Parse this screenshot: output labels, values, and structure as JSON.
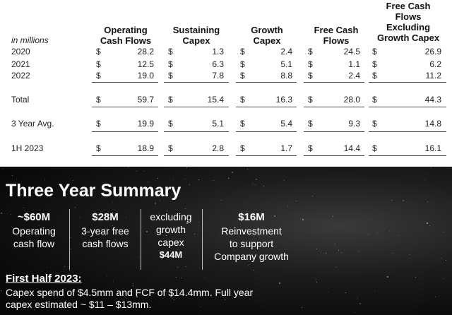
{
  "table": {
    "units_label": "in millions",
    "columns": [
      {
        "lines": [
          "Operating",
          "Cash Flows"
        ]
      },
      {
        "lines": [
          "Sustaining",
          "Capex"
        ]
      },
      {
        "lines": [
          "Growth",
          "Capex"
        ]
      },
      {
        "lines": [
          "Free Cash",
          "Flows"
        ]
      },
      {
        "lines": [
          "Free Cash",
          "Flows",
          "Excluding",
          "Growth Capex"
        ]
      }
    ],
    "currency_symbol": "$",
    "rows": [
      {
        "label": "2020",
        "values": [
          "28.2",
          "1.3",
          "2.4",
          "24.5",
          "26.9"
        ]
      },
      {
        "label": "2021",
        "values": [
          "12.5",
          "6.3",
          "5.1",
          "1.1",
          "6.2"
        ]
      },
      {
        "label": "2022",
        "values": [
          "19.0",
          "7.8",
          "8.8",
          "2.4",
          "11.2"
        ]
      },
      {
        "label": "Total",
        "values": [
          "59.7",
          "15.4",
          "16.3",
          "28.0",
          "44.3"
        ]
      },
      {
        "label": "3 Year Avg.",
        "values": [
          "19.9",
          "5.1",
          "5.4",
          "9.3",
          "14.8"
        ]
      },
      {
        "label": "1H 2023",
        "values": [
          "18.9",
          "2.8",
          "1.7",
          "14.4",
          "16.1"
        ]
      }
    ]
  },
  "summary": {
    "title": "Three Year Summary",
    "stats": [
      {
        "headline": "~$60M",
        "lines": [
          "Operating",
          "cash flow"
        ]
      },
      {
        "headline": "$28M",
        "lines": [
          "3-year free",
          "cash flows"
        ]
      },
      {
        "headline": "",
        "lines": [
          "excluding",
          "growth",
          "capex"
        ],
        "emphasis": "$44M"
      },
      {
        "headline": "$16M",
        "lines": [
          "Reinvestment",
          "to support",
          "Company growth"
        ]
      }
    ],
    "first_half_title": "First Half 2023:",
    "first_half_lines": [
      "Capex spend of $4.5mm and FCF of $14.4mm.   Full year",
      "capex estimated ~ $11 – $13mm."
    ]
  }
}
